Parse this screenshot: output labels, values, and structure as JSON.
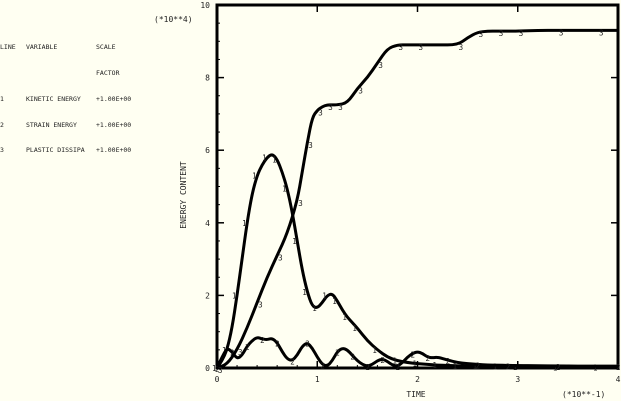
{
  "legend": {
    "header": {
      "line": "LINE",
      "variable": "VARIABLE",
      "scale": "SCALE",
      "factor": "FACTOR"
    },
    "rows": [
      {
        "line": "1",
        "variable": "KINETIC ENERGY",
        "factor": "+1.00E+00"
      },
      {
        "line": "2",
        "variable": "STRAIN ENERGY",
        "factor": "+1.00E+00"
      },
      {
        "line": "3",
        "variable": "PLASTIC DISSIPA",
        "factor": "+1.00E+00"
      }
    ]
  },
  "chart_data": {
    "type": "line",
    "xlabel": "TIME",
    "ylabel": "ENERGY CONTENT",
    "x_multiplier": "(*10**-1)",
    "y_multiplier": "(*10**4)",
    "xlim": [
      0,
      4
    ],
    "ylim": [
      0,
      10
    ],
    "x_ticks": [
      "0",
      "1",
      "2",
      "3",
      "4"
    ],
    "y_ticks": [
      "0",
      "2",
      "4",
      "6",
      "8",
      "10"
    ],
    "series": [
      {
        "name": "KINETIC ENERGY",
        "marker": "1",
        "x": [
          0,
          0.05,
          0.1,
          0.15,
          0.2,
          0.25,
          0.3,
          0.35,
          0.4,
          0.45,
          0.5,
          0.55,
          0.6,
          0.65,
          0.7,
          0.75,
          0.8,
          0.85,
          0.9,
          0.95,
          1.0,
          1.05,
          1.1,
          1.15,
          1.2,
          1.25,
          1.3,
          1.35,
          1.4,
          1.5,
          1.6,
          1.7,
          1.8,
          1.9,
          2.0,
          2.1,
          2.2,
          2.3,
          2.4,
          2.5,
          2.6,
          2.7,
          2.8,
          2.9,
          3.0,
          3.2,
          3.4,
          3.6,
          3.8,
          4.0
        ],
        "y": [
          0,
          0.2,
          0.5,
          1.1,
          2.0,
          3.0,
          4.0,
          4.8,
          5.3,
          5.6,
          5.8,
          5.9,
          5.75,
          5.4,
          4.95,
          4.3,
          3.5,
          2.7,
          2.1,
          1.7,
          1.65,
          1.8,
          2.0,
          2.05,
          1.85,
          1.6,
          1.4,
          1.25,
          1.1,
          0.75,
          0.5,
          0.3,
          0.2,
          0.15,
          0.12,
          0.1,
          0.08,
          0.07,
          0.06,
          0.05,
          0.05,
          0.04,
          0.04,
          0.03,
          0.03,
          0.03,
          0.02,
          0.02,
          0.02,
          0.02
        ]
      },
      {
        "name": "STRAIN ENERGY",
        "marker": "2",
        "x": [
          0,
          0.05,
          0.1,
          0.15,
          0.2,
          0.25,
          0.3,
          0.35,
          0.4,
          0.45,
          0.5,
          0.55,
          0.6,
          0.65,
          0.7,
          0.75,
          0.8,
          0.85,
          0.9,
          0.95,
          1.0,
          1.05,
          1.1,
          1.15,
          1.2,
          1.25,
          1.3,
          1.35,
          1.4,
          1.45,
          1.5,
          1.55,
          1.6,
          1.65,
          1.7,
          1.75,
          1.8,
          1.85,
          1.9,
          1.95,
          2.0,
          2.05,
          2.1,
          2.15,
          2.2,
          2.3,
          2.4,
          2.5,
          2.6,
          2.7,
          2.8,
          2.9,
          3.0,
          3.2,
          3.4,
          3.6,
          3.8,
          4.0
        ],
        "y": [
          0,
          0.3,
          0.55,
          0.45,
          0.25,
          0.35,
          0.6,
          0.75,
          0.85,
          0.8,
          0.78,
          0.82,
          0.7,
          0.45,
          0.25,
          0.2,
          0.35,
          0.6,
          0.7,
          0.55,
          0.3,
          0.1,
          0.05,
          0.2,
          0.45,
          0.55,
          0.5,
          0.35,
          0.2,
          0.1,
          0.05,
          0.1,
          0.2,
          0.25,
          0.18,
          0.08,
          0.05,
          0.15,
          0.3,
          0.4,
          0.45,
          0.4,
          0.3,
          0.28,
          0.3,
          0.22,
          0.15,
          0.12,
          0.1,
          0.08,
          0.08,
          0.07,
          0.07,
          0.06,
          0.06,
          0.05,
          0.05,
          0.05
        ]
      },
      {
        "name": "PLASTIC DISSIPA",
        "marker": "3",
        "x": [
          0,
          0.1,
          0.2,
          0.3,
          0.4,
          0.5,
          0.6,
          0.7,
          0.8,
          0.85,
          0.9,
          0.95,
          1.0,
          1.05,
          1.1,
          1.15,
          1.2,
          1.3,
          1.4,
          1.5,
          1.6,
          1.7,
          1.8,
          1.9,
          2.0,
          2.2,
          2.4,
          2.5,
          2.6,
          2.7,
          2.8,
          2.9,
          3.0,
          3.2,
          3.4,
          3.6,
          3.8,
          4.0
        ],
        "y": [
          0,
          0.1,
          0.5,
          1.1,
          1.8,
          2.5,
          3.1,
          3.7,
          4.6,
          5.4,
          6.2,
          6.9,
          7.1,
          7.2,
          7.25,
          7.25,
          7.25,
          7.3,
          7.7,
          8.0,
          8.4,
          8.8,
          8.9,
          8.9,
          8.9,
          8.9,
          8.9,
          9.1,
          9.25,
          9.28,
          9.28,
          9.28,
          9.28,
          9.3,
          9.3,
          9.3,
          9.3,
          9.3
        ]
      }
    ]
  }
}
